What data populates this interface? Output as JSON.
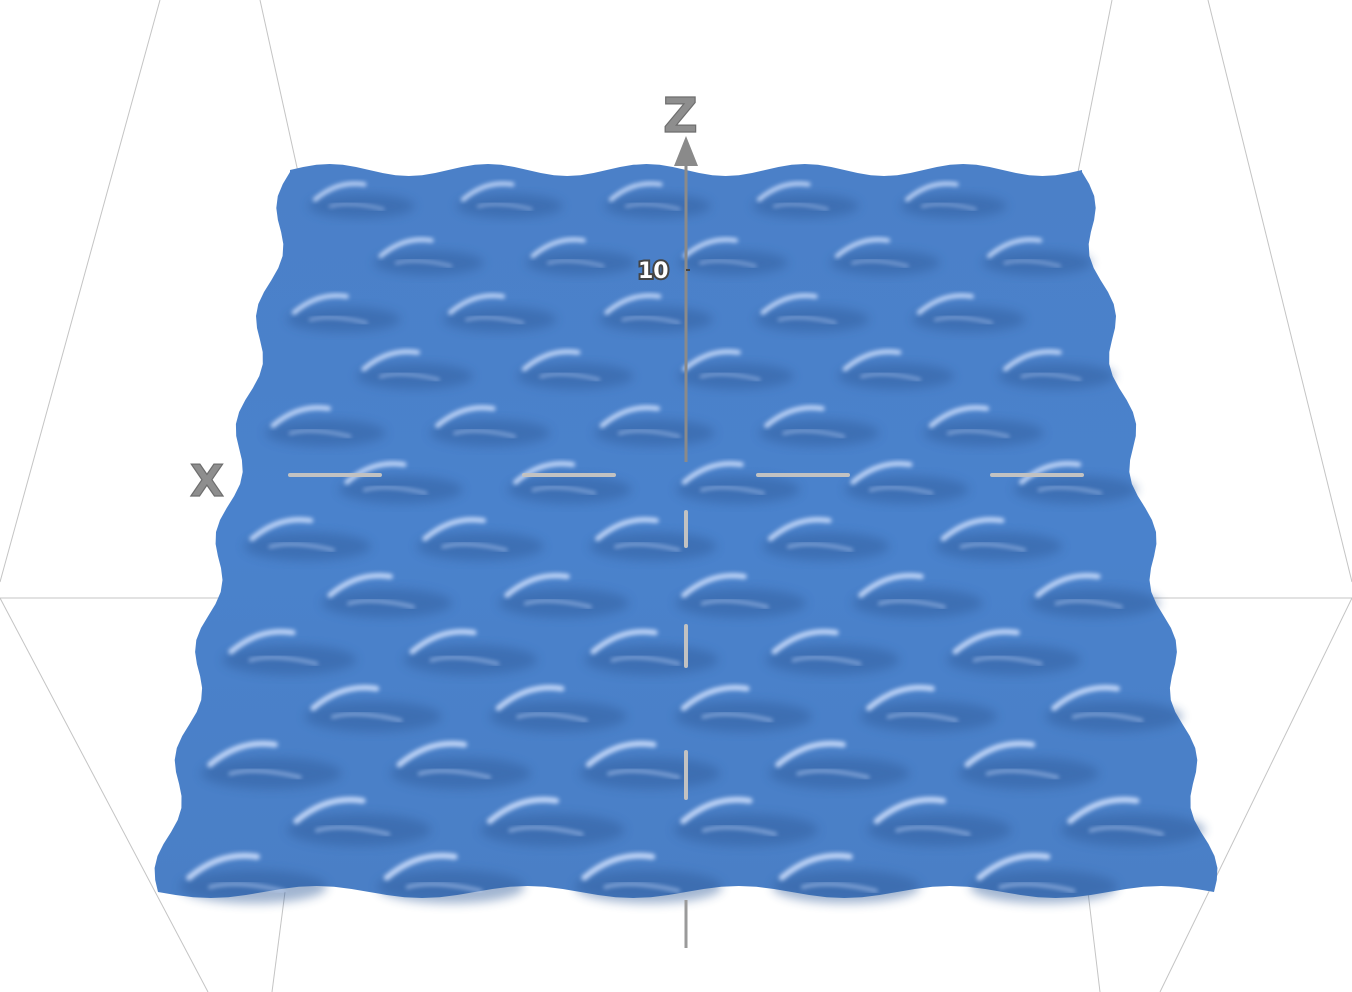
{
  "axes": {
    "x_label": "X",
    "z_label": "Z",
    "z_tick_label": "10"
  },
  "surface": {
    "color": "#4a81c9",
    "highlight_color": "#c9dcff",
    "shadow_color": "#2d5a98",
    "wave_rows": 13,
    "wave_cols": 5
  },
  "colors": {
    "bounding_box": "#c4c4c4",
    "axis": "#8a8a8a",
    "axis_dash": "#bdbdbd"
  }
}
